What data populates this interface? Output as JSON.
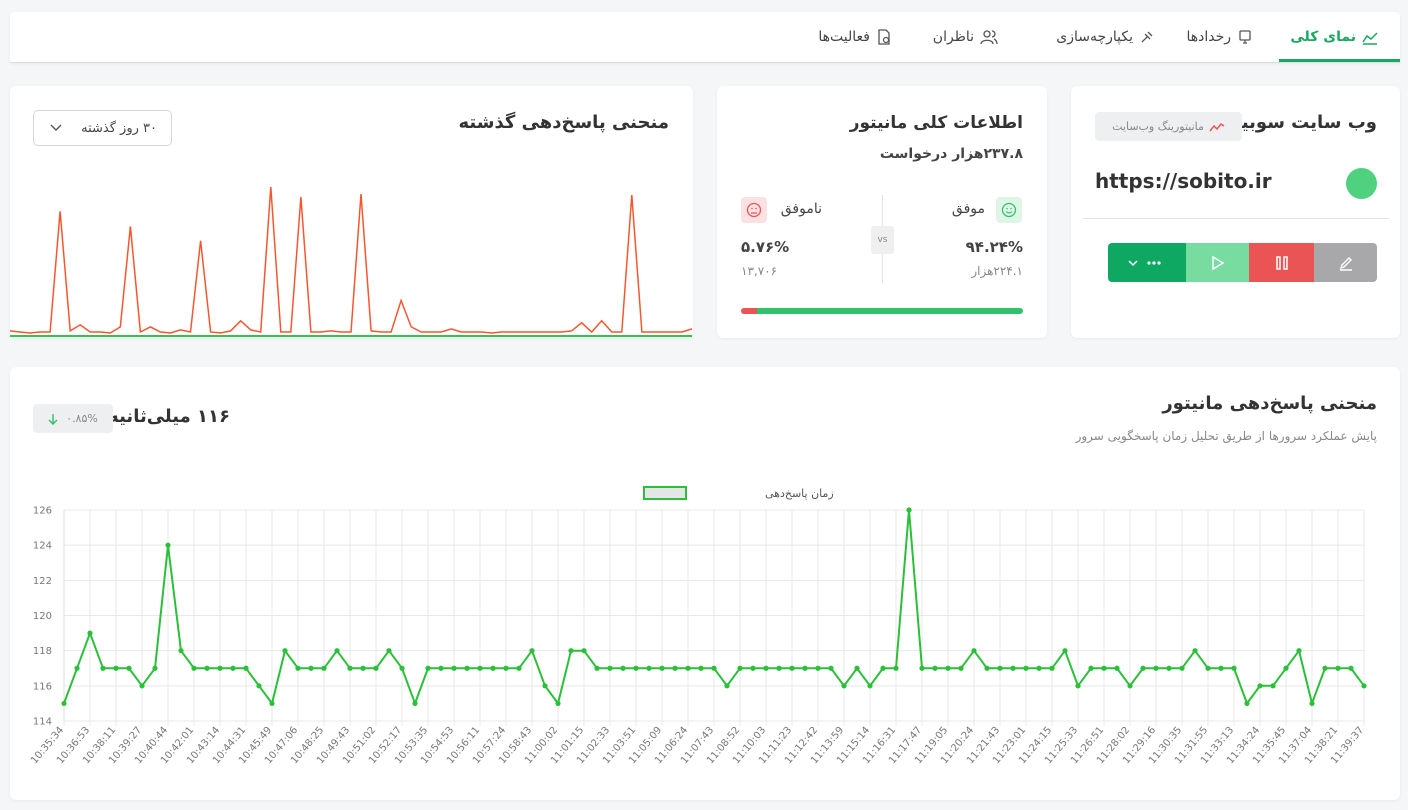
{
  "tabs": [
    "نمای کلی",
    "رخدادها",
    "یکپارچه‌سازی",
    "ناظران",
    "فعالیت‌ها"
  ],
  "monitor": {
    "title": "وب سایت سوبیتو",
    "badge": "مانیتورینگ وب‌سایت",
    "url": "https://sobito.ir"
  },
  "stats": {
    "title": "اطلاعات کلی مانیتور",
    "requests": "۲۳۷.۸هزار درخواست",
    "vs": "vs",
    "success": {
      "label": "موفق",
      "percent": {
        "value": 94.24,
        "label": "۹۴.۲۴%"
      },
      "count": "۲۲۴.۱هزار"
    },
    "failure": {
      "label": "ناموفق",
      "percent": {
        "value": 5.76,
        "label": "۵.۷۶%"
      },
      "count": "۱۳,۷۰۶"
    },
    "success_color": "#2fc26b",
    "failure_color": "#ea5455"
  },
  "history": {
    "title": "منحنی پاسخ‌دهی گذشته",
    "range": "۳۰ روز گذشته"
  },
  "response": {
    "title": "منحنی پاسخ‌دهی مانیتور",
    "subtitle": "پایش عملکرد سرورها از طریق تحلیل زمان پاسخگویی سرور",
    "current": "۱۱۶ میلی‌ثانیه",
    "change": "۰.۸۵%"
  },
  "chart_data": [
    {
      "type": "sparkline",
      "color": "#f4572f",
      "baseline_color": "#33c24d",
      "values": [
        4,
        3,
        2,
        3,
        3,
        122,
        4,
        10,
        3,
        3,
        2,
        8,
        107,
        3,
        8,
        3,
        2,
        5,
        3,
        93,
        3,
        2,
        4,
        14,
        5,
        3,
        146,
        3,
        3,
        136,
        3,
        3,
        4,
        3,
        3,
        139,
        4,
        3,
        3,
        34,
        8,
        3,
        3,
        3,
        6,
        3,
        3,
        3,
        2,
        3,
        3,
        3,
        3,
        3,
        3,
        3,
        4,
        12,
        3,
        14,
        3,
        3,
        138,
        3,
        3,
        3,
        3,
        3,
        6
      ]
    },
    {
      "type": "line",
      "legend": "زمان پاسخ‌دهی",
      "color": "#2bbf3a",
      "grid": true,
      "ylim": [
        114,
        126
      ],
      "yticks": [
        114,
        116,
        118,
        120,
        122,
        124,
        126
      ],
      "categories": [
        "10:35:34",
        null,
        "10:36:53",
        null,
        "10:38:11",
        null,
        "10:39:27",
        null,
        "10:40:44",
        null,
        "10:42:01",
        null,
        "10:43:14",
        null,
        "10:44:31",
        null,
        "10:45:49",
        null,
        "10:47:06",
        null,
        "10:48:25",
        null,
        "10:49:43",
        null,
        "10:51:02",
        null,
        "10:52:17",
        null,
        "10:53:35",
        null,
        "10:54:53",
        null,
        "10:56:11",
        null,
        "10:57:24",
        null,
        "10:58:43",
        null,
        "11:00:02",
        null,
        "11:01:15",
        null,
        "11:02:33",
        null,
        "11:03:51",
        null,
        "11:05:09",
        null,
        "11:06:24",
        null,
        "11:07:43",
        null,
        "11:08:52",
        null,
        "11:10:03",
        null,
        "11:11:23",
        null,
        "11:12:42",
        null,
        "11:13:59",
        null,
        "11:15:14",
        null,
        "11:16:31",
        null,
        "11:17:47",
        null,
        "11:19:05",
        null,
        "11:20:24",
        null,
        "11:21:43",
        null,
        "11:23:01",
        null,
        "11:24:15",
        null,
        "11:25:33",
        null,
        "11:26:51",
        null,
        "11:28:02",
        null,
        "11:29:16",
        null,
        "11:30:35",
        null,
        "11:31:55",
        null,
        "11:33:13",
        null,
        "11:34:24",
        null,
        "11:35:45",
        null,
        "11:37:04",
        null,
        "11:38:21",
        null,
        "11:39:37"
      ],
      "values": [
        115,
        117,
        119,
        117,
        117,
        117,
        116,
        117,
        124,
        118,
        117,
        117,
        117,
        117,
        117,
        116,
        115,
        118,
        117,
        117,
        117,
        118,
        117,
        117,
        117,
        118,
        117,
        115,
        117,
        117,
        117,
        117,
        117,
        117,
        117,
        117,
        118,
        116,
        115,
        118,
        118,
        117,
        117,
        117,
        117,
        117,
        117,
        117,
        117,
        117,
        117,
        116,
        117,
        117,
        117,
        117,
        117,
        117,
        117,
        117,
        116,
        117,
        116,
        117,
        117,
        126,
        117,
        117,
        117,
        117,
        118,
        117,
        117,
        117,
        117,
        117,
        117,
        118,
        116,
        117,
        117,
        117,
        116,
        117,
        117,
        117,
        117,
        118,
        117,
        117,
        117,
        115,
        116,
        116,
        117,
        118,
        115,
        117,
        117,
        117,
        116
      ]
    }
  ]
}
